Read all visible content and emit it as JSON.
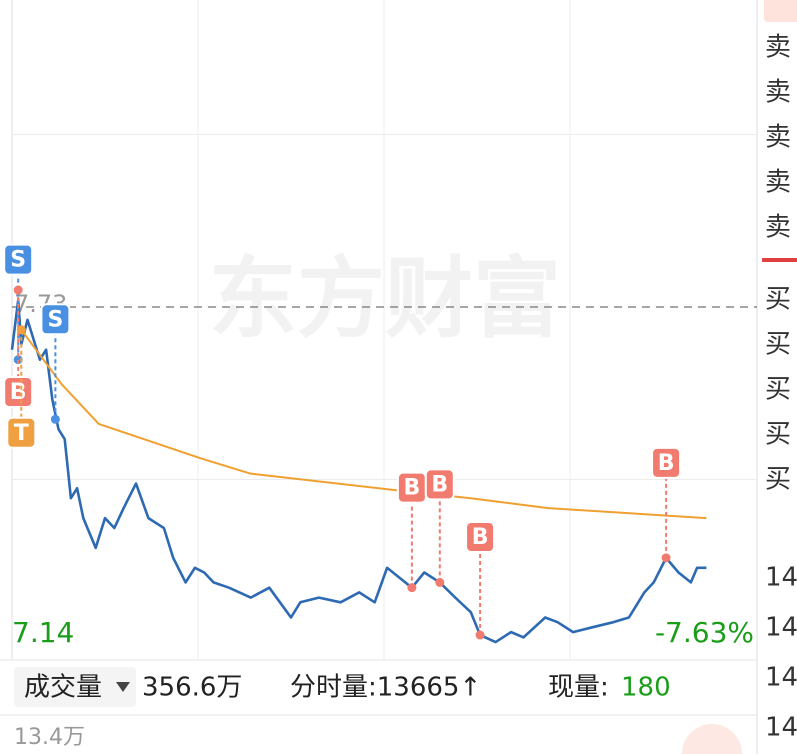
{
  "chart_data": {
    "type": "line",
    "watermark": "东方财富",
    "xlim": [
      0,
      240
    ],
    "ylim": [
      7.14,
      8.32
    ],
    "grid_x": [
      60,
      120,
      180
    ],
    "grid_y": [
      7.435,
      8.025
    ],
    "reference": {
      "value": 7.73,
      "label": "7.73"
    },
    "low_label": "7.14",
    "change_label": "-7.63%",
    "series": [
      {
        "name": "price",
        "color": "#2e6ab3",
        "x": [
          0,
          2,
          3,
          5,
          7,
          9,
          11,
          13,
          15,
          17,
          19,
          21,
          23,
          27,
          30,
          33,
          36,
          40,
          44,
          49,
          52,
          56,
          59,
          62,
          65,
          70,
          77,
          83,
          90,
          93,
          99,
          106,
          112,
          117,
          121,
          125,
          129,
          133,
          138,
          143,
          148,
          151,
          156,
          161,
          165,
          172,
          176,
          181,
          187,
          194,
          199,
          204,
          207,
          211,
          215,
          219,
          221,
          224
        ],
        "values": [
          7.657,
          7.742,
          7.666,
          7.708,
          7.674,
          7.64,
          7.657,
          7.572,
          7.521,
          7.504,
          7.403,
          7.42,
          7.369,
          7.318,
          7.369,
          7.352,
          7.386,
          7.428,
          7.369,
          7.352,
          7.301,
          7.259,
          7.284,
          7.276,
          7.259,
          7.25,
          7.233,
          7.25,
          7.199,
          7.225,
          7.233,
          7.225,
          7.242,
          7.225,
          7.284,
          7.267,
          7.25,
          7.276,
          7.259,
          7.233,
          7.208,
          7.169,
          7.157,
          7.174,
          7.165,
          7.199,
          7.191,
          7.174,
          7.182,
          7.191,
          7.199,
          7.242,
          7.259,
          7.301,
          7.276,
          7.259,
          7.284,
          7.284
        ]
      },
      {
        "name": "average",
        "color": "#f0a030",
        "x": [
          3,
          16,
          28,
          61,
          77,
          125,
          148,
          173,
          224
        ],
        "values": [
          7.691,
          7.598,
          7.53,
          7.471,
          7.445,
          7.416,
          7.403,
          7.386,
          7.369
        ]
      }
    ],
    "annotations": [
      {
        "text": "S",
        "x": 2,
        "y": 7.64,
        "color": "#4a90e2"
      },
      {
        "text": "S",
        "x": 14,
        "y": 7.538,
        "color": "#4a90e2"
      },
      {
        "text": "B",
        "x": 2,
        "y": 7.759,
        "color": "#f07b6e"
      },
      {
        "text": "T",
        "x": 3,
        "y": 7.691,
        "color": "#f0a040"
      },
      {
        "text": "B",
        "x": 129,
        "y": 7.25,
        "color": "#f07b6e"
      },
      {
        "text": "B",
        "x": 138,
        "y": 7.259,
        "color": "#f07b6e"
      },
      {
        "text": "B",
        "x": 151,
        "y": 7.169,
        "color": "#f07b6e"
      },
      {
        "text": "B",
        "x": 211,
        "y": 7.301,
        "color": "#f07b6e"
      }
    ]
  },
  "volume_bar": {
    "selector": "成交量",
    "total": "356.6万",
    "tick_label": "分时量:13665↑",
    "current_label": "现量:",
    "current_value": "180",
    "axis_label": "13.4万"
  },
  "order_book": {
    "sell": [
      "卖",
      "卖",
      "卖",
      "卖",
      "卖"
    ],
    "buy": [
      "买",
      "买",
      "买",
      "买",
      "买"
    ],
    "prices": [
      "14",
      "14",
      "14",
      "14"
    ]
  }
}
